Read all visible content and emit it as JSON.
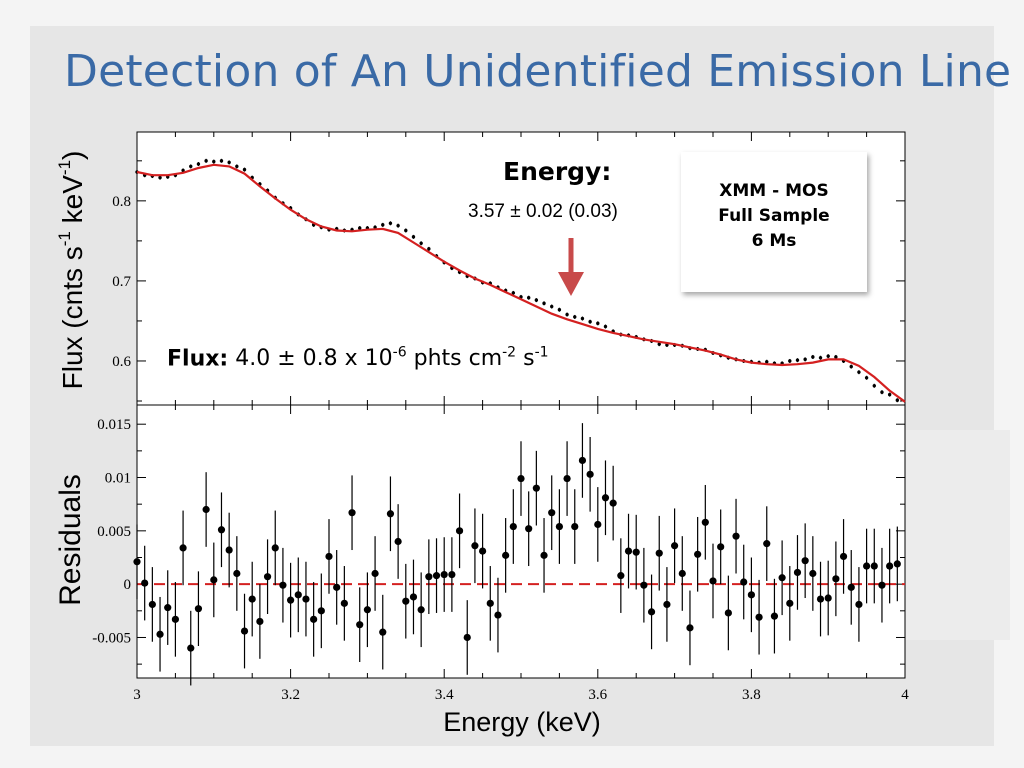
{
  "title": "Detection of An Unidentified Emission Line",
  "info_box": [
    "XMM - MOS",
    "Full Sample",
    "6 Ms"
  ],
  "energy_label": "Energy:",
  "energy_value": "3.57 ± 0.02 (0.03)",
  "flux_label": "Flux:",
  "flux_value": {
    "lead": "4.0 ± 0.8 x 10",
    "exp1": "-6",
    "mid": " phts cm",
    "exp2": "-2",
    "mid2": " s",
    "exp3": "-1"
  },
  "ylabel_top": {
    "text": "Flux (cnts s",
    "exp1": "-1",
    "mid": " keV",
    "exp2": "-1",
    "close": ")"
  },
  "ylabel_bottom": "Residuals",
  "xlabel": "Energy (keV)",
  "colors": {
    "title": "#3a6aa6",
    "model": "#d42020",
    "zero_line": "#d42020",
    "arrow": "#c84a4a"
  },
  "chart_data": [
    {
      "type": "scatter",
      "panel": "top",
      "xlim": [
        3.0,
        4.0
      ],
      "ylim": [
        0.545,
        0.886
      ],
      "xticks": [
        3,
        3.2,
        3.4,
        3.6,
        3.8,
        4
      ],
      "yticks": [
        0.6,
        0.7,
        0.8
      ],
      "ytick_labels": [
        "0.6",
        "0.7",
        "0.8"
      ],
      "series": [
        {
          "role": "data",
          "x": [
            3.0,
            3.01,
            3.02,
            3.03,
            3.04,
            3.05,
            3.06,
            3.07,
            3.08,
            3.09,
            3.1,
            3.11,
            3.12,
            3.13,
            3.14,
            3.15,
            3.16,
            3.17,
            3.18,
            3.19,
            3.2,
            3.21,
            3.22,
            3.23,
            3.24,
            3.25,
            3.26,
            3.27,
            3.28,
            3.29,
            3.3,
            3.31,
            3.32,
            3.33,
            3.34,
            3.35,
            3.36,
            3.37,
            3.38,
            3.39,
            3.4,
            3.41,
            3.42,
            3.43,
            3.44,
            3.45,
            3.46,
            3.47,
            3.48,
            3.49,
            3.5,
            3.51,
            3.52,
            3.53,
            3.54,
            3.55,
            3.56,
            3.57,
            3.58,
            3.59,
            3.6,
            3.61,
            3.62,
            3.63,
            3.64,
            3.65,
            3.66,
            3.67,
            3.68,
            3.69,
            3.7,
            3.71,
            3.72,
            3.73,
            3.74,
            3.75,
            3.76,
            3.77,
            3.78,
            3.79,
            3.8,
            3.81,
            3.82,
            3.83,
            3.84,
            3.85,
            3.86,
            3.87,
            3.88,
            3.89,
            3.9,
            3.91,
            3.92,
            3.93,
            3.94,
            3.95,
            3.96,
            3.97,
            3.98,
            3.99
          ],
          "y": [
            0.836,
            0.832,
            0.831,
            0.829,
            0.83,
            0.832,
            0.838,
            0.843,
            0.846,
            0.85,
            0.849,
            0.85,
            0.848,
            0.843,
            0.839,
            0.829,
            0.821,
            0.813,
            0.804,
            0.797,
            0.791,
            0.783,
            0.777,
            0.77,
            0.767,
            0.764,
            0.765,
            0.763,
            0.764,
            0.766,
            0.766,
            0.767,
            0.77,
            0.772,
            0.769,
            0.763,
            0.755,
            0.747,
            0.74,
            0.731,
            0.723,
            0.716,
            0.711,
            0.706,
            0.703,
            0.698,
            0.697,
            0.692,
            0.688,
            0.685,
            0.68,
            0.679,
            0.676,
            0.672,
            0.668,
            0.664,
            0.658,
            0.655,
            0.653,
            0.649,
            0.647,
            0.643,
            0.637,
            0.633,
            0.632,
            0.63,
            0.627,
            0.625,
            0.621,
            0.62,
            0.62,
            0.619,
            0.616,
            0.615,
            0.614,
            0.61,
            0.607,
            0.604,
            0.602,
            0.6,
            0.599,
            0.598,
            0.599,
            0.597,
            0.597,
            0.6,
            0.601,
            0.602,
            0.605,
            0.604,
            0.606,
            0.605,
            0.6,
            0.593,
            0.586,
            0.579,
            0.569,
            0.561,
            0.558,
            0.551
          ],
          "yerr": 0.0025
        },
        {
          "role": "model",
          "x": [
            3.0,
            3.02,
            3.04,
            3.06,
            3.08,
            3.1,
            3.12,
            3.14,
            3.16,
            3.18,
            3.2,
            3.22,
            3.24,
            3.26,
            3.28,
            3.3,
            3.32,
            3.34,
            3.36,
            3.38,
            3.4,
            3.42,
            3.44,
            3.46,
            3.48,
            3.5,
            3.52,
            3.54,
            3.56,
            3.58,
            3.6,
            3.62,
            3.64,
            3.66,
            3.68,
            3.7,
            3.72,
            3.74,
            3.76,
            3.78,
            3.8,
            3.82,
            3.84,
            3.86,
            3.88,
            3.9,
            3.92,
            3.94,
            3.96,
            3.98,
            4.0
          ],
          "y": [
            0.836,
            0.832,
            0.832,
            0.835,
            0.841,
            0.845,
            0.843,
            0.834,
            0.818,
            0.803,
            0.789,
            0.777,
            0.768,
            0.763,
            0.762,
            0.764,
            0.765,
            0.76,
            0.748,
            0.736,
            0.724,
            0.713,
            0.703,
            0.695,
            0.686,
            0.677,
            0.668,
            0.659,
            0.652,
            0.646,
            0.64,
            0.635,
            0.631,
            0.627,
            0.624,
            0.621,
            0.617,
            0.613,
            0.608,
            0.602,
            0.598,
            0.596,
            0.595,
            0.596,
            0.598,
            0.602,
            0.602,
            0.594,
            0.58,
            0.563,
            0.549
          ]
        }
      ]
    },
    {
      "type": "scatter",
      "panel": "bottom",
      "xlim": [
        3.0,
        4.0
      ],
      "ylim": [
        -0.0088,
        0.0168
      ],
      "xticks": [
        3,
        3.2,
        3.4,
        3.6,
        3.8,
        4
      ],
      "xtick_labels": [
        "3",
        "3.2",
        "3.4",
        "3.6",
        "3.8",
        "4"
      ],
      "yticks": [
        -0.005,
        0,
        0.005,
        0.01,
        0.015
      ],
      "ytick_labels": [
        "-0.005",
        "0",
        "0.005",
        "0.01",
        "0.015"
      ],
      "zero_line": 0,
      "series": [
        {
          "role": "residuals",
          "x": [
            3.0,
            3.01,
            3.02,
            3.03,
            3.04,
            3.05,
            3.06,
            3.07,
            3.08,
            3.09,
            3.1,
            3.11,
            3.12,
            3.13,
            3.14,
            3.15,
            3.16,
            3.17,
            3.18,
            3.19,
            3.2,
            3.21,
            3.22,
            3.23,
            3.24,
            3.25,
            3.26,
            3.27,
            3.28,
            3.29,
            3.3,
            3.31,
            3.32,
            3.33,
            3.34,
            3.35,
            3.36,
            3.37,
            3.38,
            3.39,
            3.4,
            3.41,
            3.42,
            3.43,
            3.44,
            3.45,
            3.46,
            3.47,
            3.48,
            3.49,
            3.5,
            3.51,
            3.52,
            3.53,
            3.54,
            3.55,
            3.56,
            3.57,
            3.58,
            3.59,
            3.6,
            3.61,
            3.62,
            3.63,
            3.64,
            3.65,
            3.66,
            3.67,
            3.68,
            3.69,
            3.7,
            3.71,
            3.72,
            3.73,
            3.74,
            3.75,
            3.76,
            3.77,
            3.78,
            3.79,
            3.8,
            3.81,
            3.82,
            3.83,
            3.84,
            3.85,
            3.86,
            3.87,
            3.88,
            3.89,
            3.9,
            3.91,
            3.92,
            3.93,
            3.94,
            3.95,
            3.96,
            3.97,
            3.98,
            3.99
          ],
          "y": [
            0.0021,
            0.0001,
            -0.0019,
            -0.0047,
            -0.0022,
            -0.0033,
            0.0034,
            -0.006,
            -0.0023,
            0.007,
            0.0004,
            0.0051,
            0.0032,
            0.001,
            -0.0044,
            -0.0014,
            -0.0035,
            0.0007,
            0.0034,
            -0.0001,
            -0.0015,
            -0.001,
            -0.0014,
            -0.0033,
            -0.0025,
            0.0026,
            -0.0003,
            -0.0018,
            0.0067,
            -0.0038,
            -0.0024,
            0.001,
            -0.0045,
            0.0066,
            0.004,
            -0.0016,
            -0.0012,
            -0.0024,
            0.0007,
            0.0008,
            0.0009,
            0.0009,
            0.005,
            -0.005,
            0.0036,
            0.0031,
            -0.0018,
            -0.0029,
            0.0027,
            0.0054,
            0.0099,
            0.0052,
            0.009,
            0.0027,
            0.0067,
            0.0054,
            0.0099,
            0.0054,
            0.0116,
            0.0103,
            0.0056,
            0.0081,
            0.0076,
            0.0008,
            0.0031,
            0.003,
            -0.0001,
            -0.0026,
            0.0029,
            -0.0019,
            0.0036,
            0.001,
            -0.0041,
            0.0028,
            0.0058,
            0.0003,
            0.0035,
            -0.0027,
            0.0045,
            0.0002,
            -0.001,
            -0.0031,
            0.0038,
            -0.003,
            0.0006,
            -0.0018,
            0.0011,
            0.0022,
            0.001,
            -0.0014,
            -0.0013,
            0.0005,
            0.0026,
            -0.0003,
            -0.0019,
            0.0017,
            0.0017,
            -0.0001,
            0.0017,
            0.0019
          ],
          "yerr": 0.0035
        }
      ]
    }
  ]
}
